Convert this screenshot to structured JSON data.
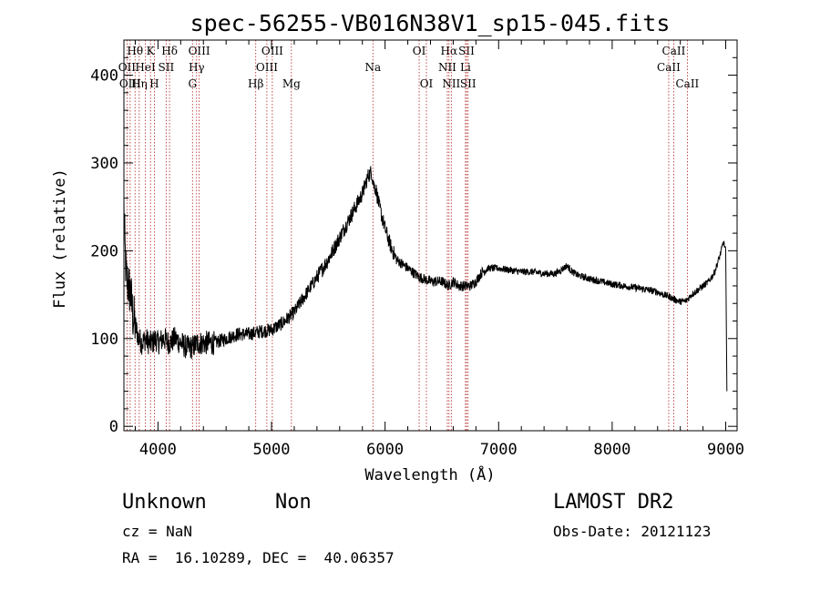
{
  "chart_data": {
    "type": "line",
    "title": "spec-56255-VB016N38V1_sp15-045.fits",
    "xlabel": "Wavelength (Å)",
    "ylabel": "Flux (relative)",
    "xlim": [
      3700,
      9100
    ],
    "ylim": [
      -5,
      440
    ],
    "x_ticks": [
      4000,
      5000,
      6000,
      7000,
      8000,
      9000
    ],
    "y_ticks": [
      0,
      100,
      200,
      300,
      400
    ],
    "x_tick_labels": [
      "4000",
      "5000",
      "6000",
      "7000",
      "8000",
      "9000"
    ],
    "y_tick_labels": [
      "0",
      "100",
      "200",
      "300",
      "400"
    ],
    "grid": false,
    "series": [
      {
        "x": [
          3700,
          3710,
          3720,
          3740,
          3760,
          3780,
          3800,
          3830,
          3860,
          3890,
          3920,
          3950,
          3980,
          4000,
          4050,
          4100,
          4150,
          4200,
          4250,
          4300,
          4350,
          4400,
          4500,
          4600,
          4700,
          4800,
          4900,
          5000,
          5100,
          5200,
          5300,
          5400,
          5500,
          5600,
          5700,
          5800,
          5850,
          5880,
          5900,
          5920,
          5950,
          6000,
          6050,
          6100,
          6200,
          6300,
          6400,
          6500,
          6560,
          6600,
          6650,
          6700,
          6750,
          6800,
          6850,
          6900,
          7000,
          7100,
          7200,
          7300,
          7400,
          7500,
          7550,
          7600,
          7650,
          7700,
          7800,
          7900,
          8000,
          8100,
          8200,
          8300,
          8400,
          8450,
          8500,
          8540,
          8600,
          8650,
          8700,
          8750,
          8800,
          8850,
          8900,
          8950,
          8980,
          9000,
          9010
        ],
        "y": [
          250,
          200,
          170,
          160,
          150,
          125,
          115,
          100,
          95,
          100,
          95,
          95,
          100,
          95,
          100,
          95,
          100,
          95,
          90,
          90,
          95,
          95,
          95,
          100,
          105,
          105,
          108,
          110,
          118,
          130,
          150,
          170,
          190,
          215,
          240,
          265,
          285,
          290,
          275,
          270,
          250,
          225,
          205,
          190,
          180,
          170,
          165,
          165,
          160,
          165,
          160,
          160,
          160,
          165,
          175,
          180,
          180,
          178,
          176,
          176,
          174,
          174,
          178,
          183,
          176,
          172,
          168,
          165,
          162,
          160,
          158,
          156,
          153,
          150,
          148,
          145,
          142,
          143,
          150,
          155,
          160,
          165,
          175,
          195,
          210,
          200,
          40
        ]
      }
    ],
    "spectral_lines": [
      {
        "label": "OII",
        "wavelength": 3727,
        "row": 2
      },
      {
        "label": "Hθ",
        "wavelength": 3798,
        "row": 1
      },
      {
        "label": "OIII",
        "wavelength": 3755,
        "row": 3
      },
      {
        "label": "Hη",
        "wavelength": 3835,
        "row": 3
      },
      {
        "label": "HeI",
        "wavelength": 3889,
        "row": 2
      },
      {
        "label": "K",
        "wavelength": 3934,
        "row": 1
      },
      {
        "label": "H",
        "wavelength": 3968,
        "row": 3
      },
      {
        "label": "SII",
        "wavelength": 4072,
        "row": 2
      },
      {
        "label": "Hδ",
        "wavelength": 4102,
        "row": 1
      },
      {
        "label": "OIII",
        "wavelength": 4363,
        "row": 1
      },
      {
        "label": "Hγ",
        "wavelength": 4340,
        "row": 2
      },
      {
        "label": "G",
        "wavelength": 4304,
        "row": 3
      },
      {
        "label": "Hβ",
        "wavelength": 4861,
        "row": 3
      },
      {
        "label": "OIII",
        "wavelength": 5007,
        "row": 1
      },
      {
        "label": "OIII",
        "wavelength": 4959,
        "row": 2
      },
      {
        "label": "Mg",
        "wavelength": 5175,
        "row": 3
      },
      {
        "label": "Na",
        "wavelength": 5893,
        "row": 2
      },
      {
        "label": "OI",
        "wavelength": 6300,
        "row": 1
      },
      {
        "label": "OI",
        "wavelength": 6364,
        "row": 3
      },
      {
        "label": "Hα",
        "wavelength": 6563,
        "row": 1
      },
      {
        "label": "NII",
        "wavelength": 6548,
        "row": 2
      },
      {
        "label": "NII",
        "wavelength": 6583,
        "row": 3
      },
      {
        "label": "SII",
        "wavelength": 6717,
        "row": 1
      },
      {
        "label": "Li",
        "wavelength": 6708,
        "row": 2
      },
      {
        "label": "SII",
        "wavelength": 6731,
        "row": 3
      },
      {
        "label": "CaII",
        "wavelength": 8542,
        "row": 1
      },
      {
        "label": "CaII",
        "wavelength": 8498,
        "row": 2
      },
      {
        "label": "CaII",
        "wavelength": 8662,
        "row": 3
      }
    ]
  },
  "footer": {
    "class_label": "Unknown",
    "subclass_label": "Non",
    "survey": "LAMOST DR2",
    "cz": "cz = NaN",
    "obs_date": "Obs-Date: 20121123",
    "coords": "RA =  16.10289, DEC =  40.06357"
  },
  "colors": {
    "spectrum": "#000000",
    "line_marker": "#b22222",
    "axes": "#000000"
  }
}
